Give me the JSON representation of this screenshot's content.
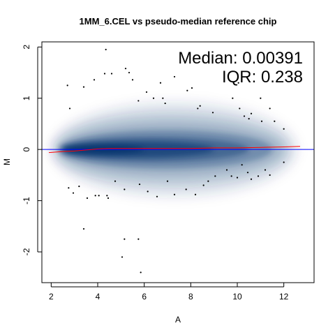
{
  "chart_data": {
    "type": "scatter",
    "title": "1MM_6.CEL vs pseudo-median reference chip",
    "xlabel": "A",
    "ylabel": "M",
    "xlim": [
      1.6,
      13.3
    ],
    "ylim": [
      -2.6,
      2.1
    ],
    "x_ticks": [
      2,
      4,
      6,
      8,
      10,
      12
    ],
    "y_ticks": [
      -2,
      -1,
      0,
      1,
      2
    ],
    "annotations": {
      "median": "Median: 0.00391",
      "iqr": "IQR: 0.238"
    },
    "grid": false,
    "legend": "none",
    "colors": {
      "density": "#08306b",
      "reference_line": "#0000ff",
      "loess_line": "#ff0000",
      "points": "#000000"
    },
    "reference_line": {
      "y": 0
    },
    "loess_curve": {
      "x": [
        1.9,
        2.5,
        3.0,
        3.5,
        4.0,
        4.5,
        5.0,
        6.0,
        7.0,
        8.0,
        9.0,
        10.0,
        11.0,
        12.0,
        12.7
      ],
      "y": [
        -0.06,
        -0.04,
        -0.03,
        -0.01,
        0.01,
        0.02,
        0.02,
        0.02,
        0.02,
        0.02,
        0.03,
        0.03,
        0.04,
        0.05,
        0.06
      ]
    },
    "outliers": [
      {
        "x": 4.35,
        "y": 1.95
      },
      {
        "x": 3.4,
        "y": 1.22
      },
      {
        "x": 3.85,
        "y": 1.36
      },
      {
        "x": 4.3,
        "y": 1.48
      },
      {
        "x": 4.6,
        "y": 1.48
      },
      {
        "x": 5.2,
        "y": 1.58
      },
      {
        "x": 5.35,
        "y": 1.5
      },
      {
        "x": 5.5,
        "y": 1.36
      },
      {
        "x": 5.75,
        "y": 0.95
      },
      {
        "x": 6.1,
        "y": 1.12
      },
      {
        "x": 6.4,
        "y": 1.0
      },
      {
        "x": 6.8,
        "y": 1.0
      },
      {
        "x": 6.9,
        "y": 0.9
      },
      {
        "x": 6.7,
        "y": 1.3
      },
      {
        "x": 7.3,
        "y": 1.42
      },
      {
        "x": 7.85,
        "y": 1.15
      },
      {
        "x": 8.05,
        "y": 1.2
      },
      {
        "x": 8.3,
        "y": 0.8
      },
      {
        "x": 8.4,
        "y": 0.85
      },
      {
        "x": 8.95,
        "y": 0.72
      },
      {
        "x": 9.8,
        "y": 1.0
      },
      {
        "x": 10.05,
        "y": 1.3
      },
      {
        "x": 10.1,
        "y": 0.8
      },
      {
        "x": 10.3,
        "y": 0.65
      },
      {
        "x": 10.5,
        "y": 0.6
      },
      {
        "x": 10.6,
        "y": 0.7
      },
      {
        "x": 11.0,
        "y": 1.0
      },
      {
        "x": 11.05,
        "y": 0.55
      },
      {
        "x": 11.4,
        "y": 0.8
      },
      {
        "x": 11.6,
        "y": 0.55
      },
      {
        "x": 12.0,
        "y": 0.4
      },
      {
        "x": 2.7,
        "y": 1.25
      },
      {
        "x": 2.8,
        "y": 0.8
      },
      {
        "x": 2.75,
        "y": -0.75
      },
      {
        "x": 2.95,
        "y": -0.85
      },
      {
        "x": 3.2,
        "y": -0.72
      },
      {
        "x": 3.55,
        "y": -0.95
      },
      {
        "x": 3.9,
        "y": -0.9
      },
      {
        "x": 4.05,
        "y": -0.9
      },
      {
        "x": 4.4,
        "y": -0.9
      },
      {
        "x": 4.45,
        "y": -0.95
      },
      {
        "x": 4.75,
        "y": -0.62
      },
      {
        "x": 5.15,
        "y": -0.78
      },
      {
        "x": 5.8,
        "y": -0.68
      },
      {
        "x": 6.15,
        "y": -0.82
      },
      {
        "x": 6.55,
        "y": -0.92
      },
      {
        "x": 7.0,
        "y": -0.62
      },
      {
        "x": 7.3,
        "y": -0.88
      },
      {
        "x": 7.8,
        "y": -0.78
      },
      {
        "x": 8.2,
        "y": -0.88
      },
      {
        "x": 8.55,
        "y": -0.7
      },
      {
        "x": 8.75,
        "y": -0.62
      },
      {
        "x": 9.05,
        "y": -0.52
      },
      {
        "x": 9.55,
        "y": -0.4
      },
      {
        "x": 9.75,
        "y": -0.52
      },
      {
        "x": 10.0,
        "y": -0.55
      },
      {
        "x": 10.2,
        "y": -0.3
      },
      {
        "x": 10.45,
        "y": -0.45
      },
      {
        "x": 10.6,
        "y": -0.58
      },
      {
        "x": 10.9,
        "y": -0.52
      },
      {
        "x": 11.2,
        "y": -0.4
      },
      {
        "x": 11.4,
        "y": -0.5
      },
      {
        "x": 12.0,
        "y": -0.25
      },
      {
        "x": 3.4,
        "y": -1.55
      },
      {
        "x": 5.15,
        "y": -1.75
      },
      {
        "x": 5.75,
        "y": -1.75
      },
      {
        "x": 5.05,
        "y": -2.1
      },
      {
        "x": 5.85,
        "y": -2.4
      }
    ]
  }
}
